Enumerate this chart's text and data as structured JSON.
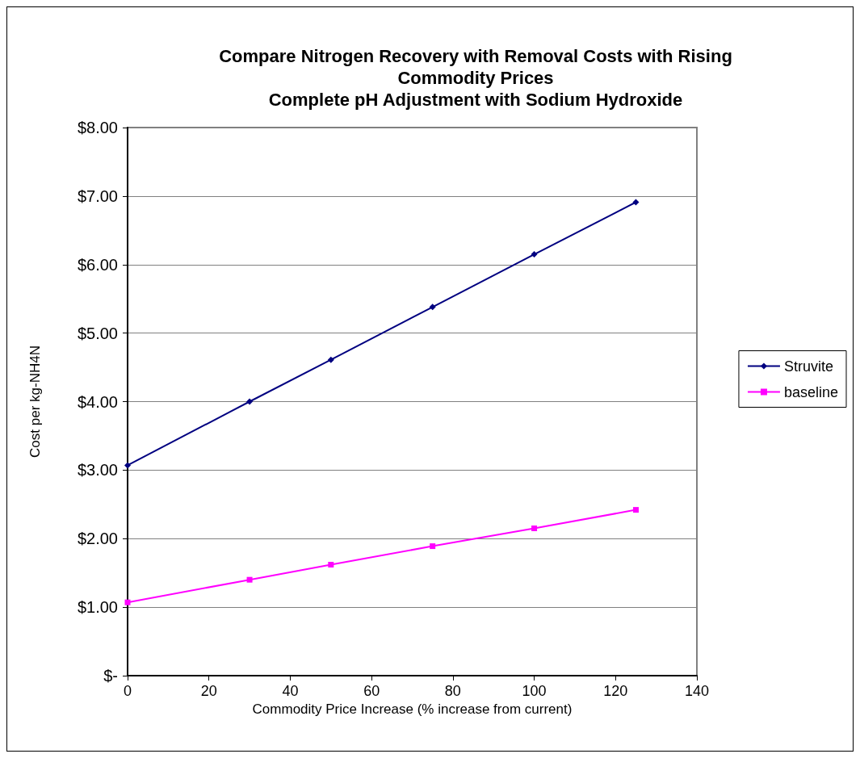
{
  "chart_data": {
    "type": "line",
    "title": "Compare Nitrogen Recovery with Removal Costs with Rising\nCommodity Prices\nComplete pH Adjustment with Sodium Hydroxide",
    "xlabel": "Commodity Price Increase (% increase from current)",
    "ylabel": "Cost per kg-NH4N",
    "x": [
      0,
      30,
      50,
      75,
      100,
      125
    ],
    "series": [
      {
        "name": "Struvite",
        "color": "#000080",
        "marker": "diamond",
        "values": [
          3.07,
          4.0,
          4.61,
          5.38,
          6.15,
          6.91
        ]
      },
      {
        "name": "baseline",
        "color": "#ff00ff",
        "marker": "square",
        "values": [
          1.07,
          1.4,
          1.62,
          1.89,
          2.15,
          2.42
        ]
      }
    ],
    "xlim": [
      0,
      140
    ],
    "xticks": [
      0,
      20,
      40,
      60,
      80,
      100,
      120,
      140
    ],
    "ylim": [
      0,
      8
    ],
    "yticks": [
      {
        "value": 0,
        "label": "$-"
      },
      {
        "value": 1,
        "label": "$1.00"
      },
      {
        "value": 2,
        "label": "$2.00"
      },
      {
        "value": 3,
        "label": "$3.00"
      },
      {
        "value": 4,
        "label": "$4.00"
      },
      {
        "value": 5,
        "label": "$5.00"
      },
      {
        "value": 6,
        "label": "$6.00"
      },
      {
        "value": 7,
        "label": "$7.00"
      },
      {
        "value": 8,
        "label": "$8.00"
      }
    ],
    "grid": "y",
    "legend": "right"
  }
}
